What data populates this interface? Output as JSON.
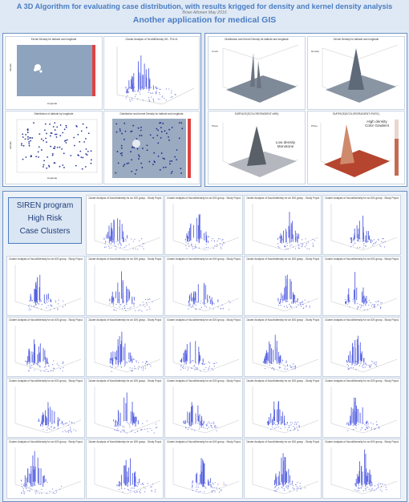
{
  "header": {
    "title_line1": "A 3D Algorithm for evaluating case distribution, with results krigged for density and kernel density analysis",
    "author": "Brian Altonen May 2016",
    "title_line2": "Another application for medical GIS"
  },
  "top_left_panel": {
    "charts": [
      {
        "caption": "Kernel Density for latitude and longitude",
        "y_label": "latitude",
        "x_label": "longitude"
      },
      {
        "caption": "Cluster Analysis of %LAtitlDensity I02 - PUI.x1"
      },
      {
        "caption": "Distribution of latitude by longitude",
        "y_label": "latitude",
        "x_label": "longitude"
      },
      {
        "caption": "Distribution and kernel Density for latitude and longitude"
      }
    ]
  },
  "top_right_panel": {
    "charts": [
      {
        "caption": "Distribution and Kernel Density for latitude and longitude",
        "z_label": "Count"
      },
      {
        "caption": "Kernel Density for latitude and longitude",
        "z_label": "Density"
      },
      {
        "caption": "SURFACE(ECOLORGRADIENT=MIN)",
        "annotation": [
          "Low density",
          "Monotone"
        ],
        "z_label": "Photo"
      },
      {
        "caption": "SURFACE(ECOLORGRADIENT=PURC)",
        "annotation": [
          "High density",
          "Color Gradient"
        ],
        "z_label": "Photo"
      }
    ]
  },
  "program_box": {
    "line1": "SIREN program",
    "line2": "High Risk",
    "line3": "Case  Clusters"
  },
  "grid": {
    "thumb_caption": "Cluster Analysis of NucoMdensity for an IDS group - Study Population Run 1"
  },
  "colors": {
    "accent": "#4a7dc4",
    "panel_border": "#6d8fbf",
    "page_bg": "#dfe9f5",
    "bar_blue": "#5560e0",
    "surface_red": "#b5452f"
  }
}
